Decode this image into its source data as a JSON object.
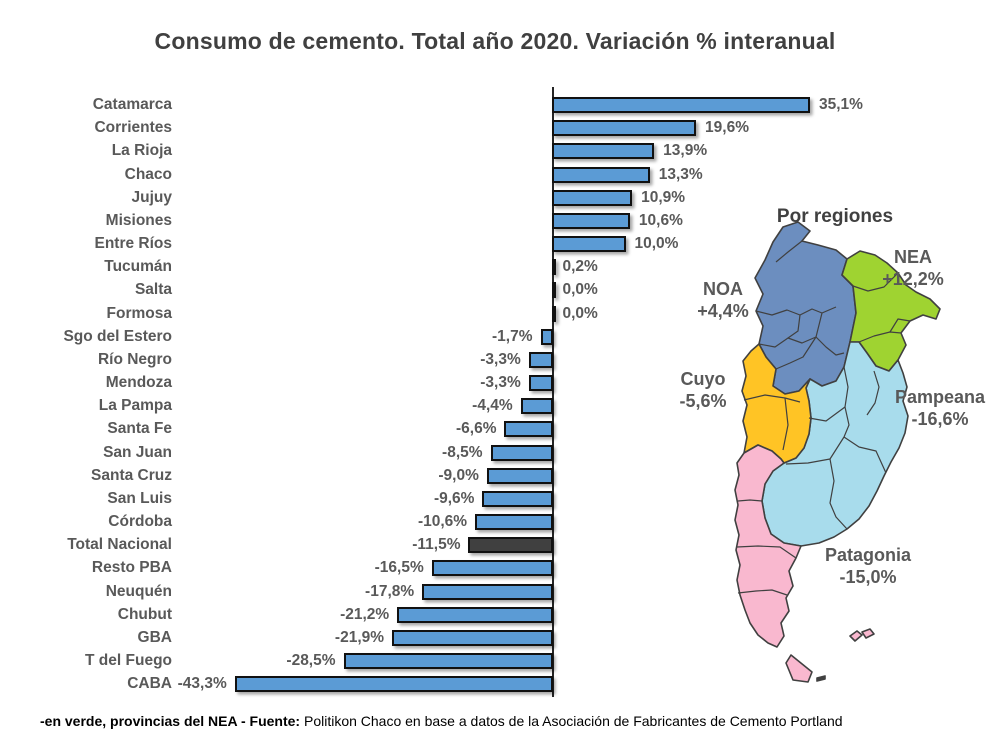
{
  "title": "Consumo de cemento. Total año 2020. Variación % interanual",
  "chart_data": {
    "type": "bar",
    "orientation": "horizontal",
    "title": "Consumo de cemento. Total año 2020. Variación % interanual",
    "unit": "%",
    "categories": [
      "Catamarca",
      "Corrientes",
      "La Rioja",
      "Chaco",
      "Jujuy",
      "Misiones",
      "Entre Ríos",
      "Tucumán",
      "Salta",
      "Formosa",
      "Sgo del Estero",
      "Río Negro",
      "Mendoza",
      "La Pampa",
      "Santa Fe",
      "San Juan",
      "Santa Cruz",
      "San Luis",
      "Córdoba",
      "Total Nacional",
      "Resto PBA",
      "Neuquén",
      "Chubut",
      "GBA",
      "T del Fuego",
      "CABA"
    ],
    "values": [
      35.1,
      19.6,
      13.9,
      13.3,
      10.9,
      10.6,
      10.0,
      0.2,
      0.0,
      0.0,
      -1.7,
      -3.3,
      -3.3,
      -4.4,
      -6.6,
      -8.5,
      -9.0,
      -9.6,
      -10.6,
      -11.5,
      -16.5,
      -17.8,
      -21.2,
      -21.9,
      -28.5,
      -43.3
    ],
    "value_labels": [
      "35,1%",
      "19,6%",
      "13,9%",
      "13,3%",
      "10,9%",
      "10,6%",
      "10,0%",
      "0,2%",
      "0,0%",
      "0,0%",
      "-1,7%",
      "-3,3%",
      "-3,3%",
      "-4,4%",
      "-6,6%",
      "-8,5%",
      "-9,0%",
      "-9,6%",
      "-10,6%",
      "-11,5%",
      "-16,5%",
      "-17,8%",
      "-21,2%",
      "-21,9%",
      "-28,5%",
      "-43,3%"
    ],
    "bar_color": "#5B9BD5",
    "highlight_category": "Total Nacional",
    "highlight_color": "#404040",
    "xlim": [
      -45,
      40
    ],
    "grid": false,
    "zero_axis": true
  },
  "map": {
    "heading": "Por regiones",
    "regions": [
      {
        "name": "NOA",
        "value_label": "+4,4%",
        "color": "#6C8EBF"
      },
      {
        "name": "NEA",
        "value_label": "+12,2%",
        "color": "#9FD331"
      },
      {
        "name": "Cuyo",
        "value_label": "-5,6%",
        "color": "#FFC425"
      },
      {
        "name": "Pampeana",
        "value_label": "-16,6%",
        "color": "#A8DCEC"
      },
      {
        "name": "Patagonia",
        "value_label": "-15,0%",
        "color": "#F9B8CF"
      }
    ]
  },
  "footer": {
    "bold": "-en verde, provincias del NEA - Fuente:",
    "normal": " Politikon Chaco en base a datos de la Asociación de Fabricantes de Cemento Portland"
  }
}
